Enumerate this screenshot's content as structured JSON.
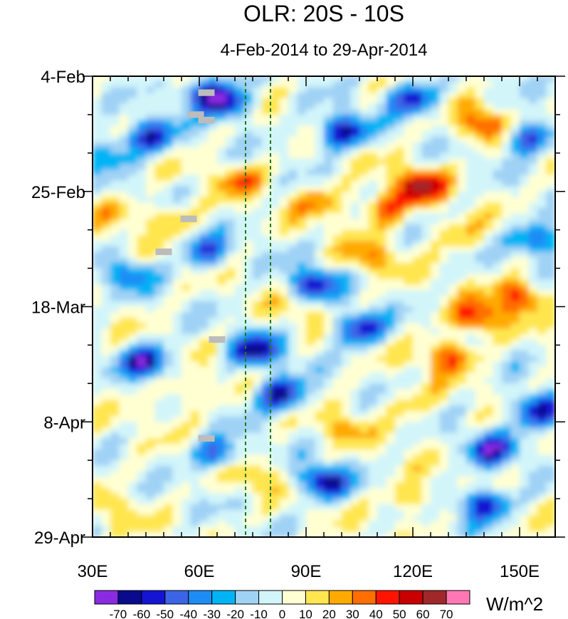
{
  "chart_data": {
    "type": "heatmap",
    "title": "OLR: 20S - 10S",
    "subtitle": "4-Feb-2014 to 29-Apr-2014",
    "x_tick_labels": [
      "30E",
      "60E",
      "90E",
      "120E",
      "150E"
    ],
    "x_tick_values": [
      30,
      60,
      90,
      120,
      150
    ],
    "xlim": [
      30,
      160
    ],
    "y_tick_labels": [
      "4-Feb",
      "25-Feb",
      "18-Mar",
      "8-Apr",
      "29-Apr"
    ],
    "y_tick_values": [
      "2014-02-04",
      "2014-02-25",
      "2014-03-18",
      "2014-04-08",
      "2014-04-29"
    ],
    "ylim": [
      "2014-02-04",
      "2014-04-29"
    ],
    "y_direction": "downward",
    "reference_lines_x": [
      73,
      80
    ],
    "colorbar": {
      "unit_label": "W/m^2",
      "levels": [
        -70,
        -60,
        -50,
        -40,
        -30,
        -20,
        -10,
        0,
        10,
        20,
        30,
        40,
        50,
        60,
        70
      ],
      "level_labels": [
        "-70",
        "-60",
        "-50",
        "-40",
        "-30",
        "-20",
        "-10",
        "0",
        "10",
        "20",
        "30",
        "40",
        "50",
        "60",
        "70"
      ],
      "colors": [
        "#8a2be2",
        "#0a0a8c",
        "#1414d2",
        "#3c64e6",
        "#1e8cf5",
        "#00b4f5",
        "#a0d2f5",
        "#d2f5fa",
        "#ffffd2",
        "#ffe650",
        "#ffaa00",
        "#ff6e00",
        "#ff1400",
        "#c80000",
        "#a02828",
        "#ff78b4"
      ]
    },
    "anomalies": [
      {
        "lon": 46,
        "date": "2014-02-15",
        "value": -60
      },
      {
        "lon": 62,
        "date": "2014-02-07",
        "value": -55
      },
      {
        "lon": 68,
        "date": "2014-02-09",
        "value": -50
      },
      {
        "lon": 100,
        "date": "2014-02-14",
        "value": -65
      },
      {
        "lon": 120,
        "date": "2014-02-08",
        "value": -55
      },
      {
        "lon": 152,
        "date": "2014-02-15",
        "value": -55
      },
      {
        "lon": 122,
        "date": "2014-02-24",
        "value": 58
      },
      {
        "lon": 112,
        "date": "2014-02-28",
        "value": 40
      },
      {
        "lon": 94,
        "date": "2014-02-27",
        "value": 28
      },
      {
        "lon": 72,
        "date": "2014-02-23",
        "value": 30
      },
      {
        "lon": 140,
        "date": "2014-02-13",
        "value": 45
      },
      {
        "lon": 155,
        "date": "2014-03-06",
        "value": -50
      },
      {
        "lon": 150,
        "date": "2014-03-16",
        "value": 50
      },
      {
        "lon": 138,
        "date": "2014-03-20",
        "value": 45
      },
      {
        "lon": 130,
        "date": "2014-03-27",
        "value": 42
      },
      {
        "lon": 45,
        "date": "2014-03-28",
        "value": -62
      },
      {
        "lon": 76,
        "date": "2014-03-26",
        "value": -62
      },
      {
        "lon": 83,
        "date": "2014-04-03",
        "value": -65
      },
      {
        "lon": 92,
        "date": "2014-03-14",
        "value": -55
      },
      {
        "lon": 105,
        "date": "2014-03-22",
        "value": -60
      },
      {
        "lon": 62,
        "date": "2014-03-08",
        "value": -45
      },
      {
        "lon": 40,
        "date": "2014-03-12",
        "value": -35
      },
      {
        "lon": 52,
        "date": "2014-03-02",
        "value": 25
      },
      {
        "lon": 55,
        "date": "2014-04-03",
        "value": 22
      },
      {
        "lon": 100,
        "date": "2014-04-09",
        "value": 22
      },
      {
        "lon": 120,
        "date": "2014-04-05",
        "value": 18
      },
      {
        "lon": 155,
        "date": "2014-04-06",
        "value": -65
      },
      {
        "lon": 142,
        "date": "2014-04-13",
        "value": -55
      },
      {
        "lon": 95,
        "date": "2014-04-19",
        "value": -65
      },
      {
        "lon": 140,
        "date": "2014-04-23",
        "value": -60
      },
      {
        "lon": 65,
        "date": "2014-04-14",
        "value": -45
      },
      {
        "lon": 75,
        "date": "2014-04-18",
        "value": 22
      },
      {
        "lon": 120,
        "date": "2014-04-22",
        "value": 25
      },
      {
        "lon": 35,
        "date": "2014-04-24",
        "value": 15
      },
      {
        "lon": 108,
        "date": "2014-03-09",
        "value": 28
      },
      {
        "lon": 132,
        "date": "2014-03-05",
        "value": 20
      },
      {
        "lon": 88,
        "date": "2014-03-19",
        "value": 15
      },
      {
        "lon": 34,
        "date": "2014-02-18",
        "value": -30
      },
      {
        "lon": 36,
        "date": "2014-03-01",
        "value": 15
      }
    ],
    "missing_cells": [
      {
        "lon": 62,
        "date": "2014-02-07"
      },
      {
        "lon": 59,
        "date": "2014-02-11"
      },
      {
        "lon": 62,
        "date": "2014-02-12"
      },
      {
        "lon": 57,
        "date": "2014-03-02"
      },
      {
        "lon": 50,
        "date": "2014-03-08"
      },
      {
        "lon": 65,
        "date": "2014-03-24"
      },
      {
        "lon": 62,
        "date": "2014-04-11"
      }
    ]
  }
}
